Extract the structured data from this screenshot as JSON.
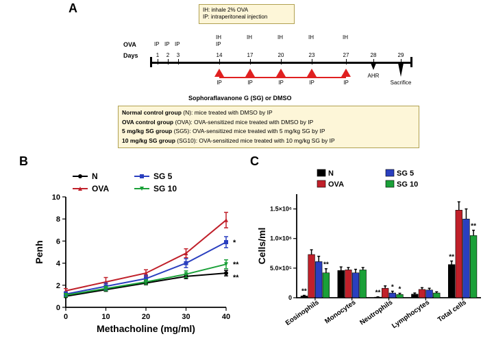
{
  "panelA": {
    "label": "A",
    "topLegend": [
      "IH: inhale 2% OVA",
      "IP: intraperitoneal injection"
    ],
    "rows": {
      "ova": "OVA",
      "days": "Days"
    },
    "days": [
      1,
      2,
      3,
      14,
      17,
      20,
      23,
      27,
      28,
      29
    ],
    "ip_days": [
      1,
      2,
      3,
      14
    ],
    "ih_days": [
      14,
      17,
      20,
      23,
      27
    ],
    "ih_ip_label_top": "IH",
    "ih_ip_label_bottom": "IP",
    "red_days": [
      14,
      17,
      20,
      23,
      27
    ],
    "end_labels": {
      "28": "AHR",
      "29": "Sacrifice"
    },
    "sg_label": "Sophoraflavanone G (SG) or DMSO",
    "red_color": "#e02020",
    "groups": [
      {
        "bold": "Normal control group",
        "paren": " (N): ",
        "rest": "mice treated with DMSO by IP"
      },
      {
        "bold": "OVA control group",
        "paren": " (OVA): ",
        "rest": "OVA-sensitized mice  treated with DMSO by IP"
      },
      {
        "bold": "  5 mg/kg SG group",
        "paren": " (SG5): ",
        "rest": "OVA-sensitized mice treated with 5 mg/kg SG by IP"
      },
      {
        "bold": "10 mg/kg SG group",
        "paren": " (SG10): ",
        "rest": "OVA-sensitized mice treated with 10 mg/kg SG by IP"
      }
    ]
  },
  "panelB": {
    "label": "B",
    "type": "line",
    "xlabel": "Methacholine (mg/ml)",
    "ylabel": "Penh",
    "xticks": [
      0,
      10,
      20,
      30,
      40
    ],
    "yticks": [
      0,
      2,
      4,
      6,
      8,
      10
    ],
    "xlim": [
      0,
      40
    ],
    "ylim": [
      0,
      10
    ],
    "legend_sig": {
      "SG 5": "*",
      "SG 10": "**",
      "N_end": "**"
    },
    "series": [
      {
        "name": "N",
        "color": "#000000",
        "marker": "circle",
        "x": [
          0,
          10,
          20,
          30,
          40
        ],
        "y": [
          1.0,
          1.6,
          2.2,
          2.8,
          3.1
        ],
        "err": [
          0.1,
          0.15,
          0.15,
          0.2,
          0.25
        ]
      },
      {
        "name": "OVA",
        "color": "#c0202a",
        "marker": "triangle",
        "x": [
          0,
          10,
          20,
          30,
          40
        ],
        "y": [
          1.5,
          2.3,
          3.1,
          4.9,
          7.9
        ],
        "err": [
          0.2,
          0.4,
          0.3,
          0.4,
          0.7
        ]
      },
      {
        "name": "SG 5",
        "color": "#2a3fbf",
        "marker": "square",
        "x": [
          0,
          10,
          20,
          30,
          40
        ],
        "y": [
          1.2,
          1.9,
          2.6,
          4.0,
          5.9
        ],
        "err": [
          0.2,
          0.3,
          0.3,
          0.4,
          0.5
        ]
      },
      {
        "name": "SG 10",
        "color": "#1aa038",
        "marker": "tri-down",
        "x": [
          0,
          10,
          20,
          30,
          40
        ],
        "y": [
          1.1,
          1.7,
          2.3,
          3.0,
          3.9
        ],
        "err": [
          0.15,
          0.2,
          0.2,
          0.3,
          0.4
        ]
      }
    ],
    "legend_order": [
      "N",
      "SG 5",
      "OVA",
      "SG 10"
    ],
    "background_color": "#ffffff",
    "axis_color": "#000000",
    "label_fontsize": 14,
    "tick_fontsize": 11,
    "line_width": 2,
    "marker_size": 6
  },
  "panelC": {
    "label": "C",
    "type": "grouped-bar",
    "ylabel": "Cells/ml",
    "categories": [
      "Eosinophils",
      "Monocytes",
      "Neutrophils",
      "Lymphocytes",
      "Total cells"
    ],
    "yticks": [
      0,
      500000,
      1000000,
      1500000
    ],
    "ytick_labels": [
      "0",
      "5.0×10⁵",
      "1.0×10⁶",
      "1.5×10⁶"
    ],
    "ylim": [
      0,
      1750000
    ],
    "groups": [
      {
        "name": "N",
        "color": "#000000"
      },
      {
        "name": "OVA",
        "color": "#c0202a"
      },
      {
        "name": "SG 5",
        "color": "#2a3fbf"
      },
      {
        "name": "SG 10",
        "color": "#1aa038"
      }
    ],
    "values": {
      "Eosinophils": {
        "N": 30000,
        "OVA": 730000,
        "SG 5": 610000,
        "SG 10": 420000
      },
      "Monocytes": {
        "N": 460000,
        "OVA": 470000,
        "SG 5": 420000,
        "SG 10": 470000
      },
      "Neutrophils": {
        "N": 10000,
        "OVA": 160000,
        "SG 5": 80000,
        "SG 10": 55000
      },
      "Lymphocytes": {
        "N": 60000,
        "OVA": 140000,
        "SG 5": 130000,
        "SG 10": 80000
      },
      "Total cells": {
        "N": 560000,
        "OVA": 1480000,
        "SG 5": 1330000,
        "SG 10": 1050000
      }
    },
    "errors": {
      "Eosinophils": {
        "N": 10000,
        "OVA": 80000,
        "SG 5": 90000,
        "SG 10": 70000
      },
      "Monocytes": {
        "N": 60000,
        "OVA": 40000,
        "SG 5": 60000,
        "SG 10": 40000
      },
      "Neutrophils": {
        "N": 5000,
        "OVA": 40000,
        "SG 5": 30000,
        "SG 10": 20000
      },
      "Lymphocytes": {
        "N": 20000,
        "OVA": 30000,
        "SG 5": 30000,
        "SG 10": 20000
      },
      "Total cells": {
        "N": 60000,
        "OVA": 140000,
        "SG 5": 170000,
        "SG 10": 90000
      }
    },
    "significance": {
      "Eosinophils": {
        "N": "**",
        "SG 10": "**"
      },
      "Neutrophils": {
        "N": "**",
        "SG 5": "*",
        "SG 10": "*"
      },
      "Total cells": {
        "N": "**",
        "SG 10": "**"
      }
    },
    "bar_width": 0.2,
    "background_color": "#ffffff",
    "axis_color": "#000000",
    "label_fontsize": 14,
    "tick_fontsize": 10
  }
}
